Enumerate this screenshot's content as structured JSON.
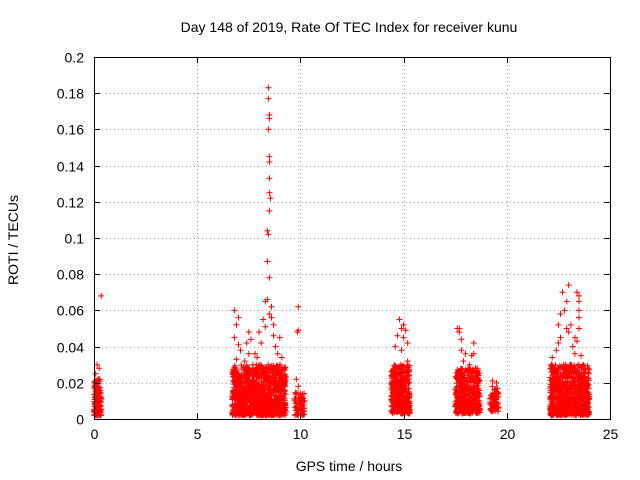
{
  "chart_data": {
    "type": "scatter",
    "title": "Day 148 of 2019, Rate Of TEC Index for receiver kunu",
    "xlabel": "GPS time / hours",
    "ylabel": "ROTI / TECUs",
    "xlim": [
      0,
      25
    ],
    "ylim": [
      0,
      0.2
    ],
    "xticks": [
      0,
      5,
      10,
      15,
      20,
      25
    ],
    "xtick_labels": [
      "0",
      "5",
      "10",
      "15",
      "20",
      "25"
    ],
    "yticks": [
      0,
      0.02,
      0.04,
      0.06,
      0.08,
      0.1,
      0.12,
      0.14,
      0.16,
      0.18,
      0.2
    ],
    "ytick_labels": [
      "0",
      "0.02",
      "0.04",
      "0.06",
      "0.08",
      "0.1",
      "0.12",
      "0.14",
      "0.16",
      "0.18",
      "0.2"
    ],
    "grid": true,
    "marker": "+",
    "color": "#ff0000",
    "series": [
      {
        "name": "ROTI",
        "points": [
          [
            0.05,
            0.005
          ],
          [
            0.05,
            0.012
          ],
          [
            0.05,
            0.018
          ],
          [
            0.08,
            0.025
          ],
          [
            0.1,
            0.009
          ],
          [
            0.1,
            0.02
          ],
          [
            0.12,
            0.015
          ],
          [
            0.15,
            0.006
          ],
          [
            0.15,
            0.03
          ],
          [
            0.18,
            0.011
          ],
          [
            0.2,
            0.022
          ],
          [
            0.22,
            0.004
          ],
          [
            0.25,
            0.017
          ],
          [
            0.25,
            0.028
          ],
          [
            0.28,
            0.01
          ],
          [
            0.3,
            0.014
          ],
          [
            0.35,
            0.068
          ],
          [
            6.8,
            0.06
          ],
          [
            6.8,
            0.045
          ],
          [
            6.9,
            0.052
          ],
          [
            6.9,
            0.033
          ],
          [
            7.0,
            0.056
          ],
          [
            7.0,
            0.041
          ],
          [
            7.1,
            0.038
          ],
          [
            7.3,
            0.032
          ],
          [
            7.4,
            0.042
          ],
          [
            7.5,
            0.048
          ],
          [
            7.5,
            0.036
          ],
          [
            7.6,
            0.044
          ],
          [
            7.7,
            0.03
          ],
          [
            7.8,
            0.036
          ],
          [
            7.9,
            0.034
          ],
          [
            8.0,
            0.048
          ],
          [
            8.1,
            0.042
          ],
          [
            8.2,
            0.055
          ],
          [
            8.3,
            0.051
          ],
          [
            8.3,
            0.065
          ],
          [
            8.45,
            0.183
          ],
          [
            8.45,
            0.177
          ],
          [
            8.5,
            0.168
          ],
          [
            8.5,
            0.166
          ],
          [
            8.45,
            0.16
          ],
          [
            8.5,
            0.145
          ],
          [
            8.5,
            0.142
          ],
          [
            8.5,
            0.133
          ],
          [
            8.5,
            0.125
          ],
          [
            8.55,
            0.122
          ],
          [
            8.5,
            0.115
          ],
          [
            8.4,
            0.104
          ],
          [
            8.45,
            0.102
          ],
          [
            8.4,
            0.087
          ],
          [
            8.5,
            0.078
          ],
          [
            8.4,
            0.066
          ],
          [
            8.5,
            0.058
          ],
          [
            8.6,
            0.062
          ],
          [
            8.6,
            0.056
          ],
          [
            8.7,
            0.052
          ],
          [
            8.7,
            0.046
          ],
          [
            8.8,
            0.04
          ],
          [
            8.9,
            0.036
          ],
          [
            9.0,
            0.045
          ],
          [
            9.0,
            0.03
          ],
          [
            9.1,
            0.034
          ],
          [
            9.2,
            0.028
          ],
          [
            9.9,
            0.062
          ],
          [
            9.85,
            0.048
          ],
          [
            9.9,
            0.049
          ],
          [
            9.8,
            0.022
          ],
          [
            9.9,
            0.018
          ],
          [
            10.0,
            0.014
          ],
          [
            10.0,
            0.008
          ],
          [
            10.1,
            0.012
          ],
          [
            10.1,
            0.004
          ],
          [
            10.2,
            0.01
          ],
          [
            14.6,
            0.04
          ],
          [
            14.7,
            0.046
          ],
          [
            14.8,
            0.055
          ],
          [
            14.9,
            0.05
          ],
          [
            14.9,
            0.038
          ],
          [
            15.0,
            0.052
          ],
          [
            15.0,
            0.045
          ],
          [
            15.1,
            0.049
          ],
          [
            15.2,
            0.042
          ],
          [
            15.2,
            0.032
          ],
          [
            14.5,
            0.025
          ],
          [
            14.5,
            0.015
          ],
          [
            14.6,
            0.008
          ],
          [
            17.6,
            0.05
          ],
          [
            17.7,
            0.05
          ],
          [
            17.7,
            0.048
          ],
          [
            17.8,
            0.038
          ],
          [
            17.8,
            0.044
          ],
          [
            17.9,
            0.032
          ],
          [
            18.0,
            0.036
          ],
          [
            18.2,
            0.03
          ],
          [
            18.3,
            0.035
          ],
          [
            18.4,
            0.042
          ],
          [
            18.4,
            0.036
          ],
          [
            18.5,
            0.028
          ],
          [
            18.6,
            0.022
          ],
          [
            19.3,
            0.021
          ],
          [
            19.3,
            0.018
          ],
          [
            19.4,
            0.016
          ],
          [
            19.4,
            0.012
          ],
          [
            19.5,
            0.02
          ],
          [
            19.5,
            0.009
          ],
          [
            19.6,
            0.014
          ],
          [
            19.6,
            0.006
          ],
          [
            22.2,
            0.034
          ],
          [
            22.3,
            0.028
          ],
          [
            22.4,
            0.038
          ],
          [
            22.5,
            0.042
          ],
          [
            22.5,
            0.052
          ],
          [
            22.6,
            0.058
          ],
          [
            22.6,
            0.045
          ],
          [
            22.7,
            0.07
          ],
          [
            22.8,
            0.06
          ],
          [
            22.9,
            0.065
          ],
          [
            22.9,
            0.05
          ],
          [
            23.0,
            0.074
          ],
          [
            23.0,
            0.048
          ],
          [
            23.1,
            0.052
          ],
          [
            23.2,
            0.04
          ],
          [
            23.3,
            0.045
          ],
          [
            23.3,
            0.036
          ],
          [
            23.4,
            0.07
          ],
          [
            23.5,
            0.068
          ],
          [
            23.5,
            0.065
          ],
          [
            23.5,
            0.06
          ],
          [
            23.5,
            0.056
          ],
          [
            23.5,
            0.05
          ],
          [
            23.4,
            0.043
          ],
          [
            23.6,
            0.035
          ],
          [
            23.7,
            0.03
          ],
          [
            23.8,
            0.025
          ],
          [
            23.9,
            0.018
          ]
        ],
        "dense_clusters": [
          {
            "x_range": [
              0.0,
              0.35
            ],
            "y_range": [
              0.002,
              0.022
            ],
            "count": 120
          },
          {
            "x_range": [
              6.7,
              9.3
            ],
            "y_range": [
              0.002,
              0.03
            ],
            "count": 1100
          },
          {
            "x_range": [
              9.7,
              10.2
            ],
            "y_range": [
              0.002,
              0.015
            ],
            "count": 60
          },
          {
            "x_range": [
              14.4,
              15.3
            ],
            "y_range": [
              0.003,
              0.03
            ],
            "count": 380
          },
          {
            "x_range": [
              17.5,
              18.7
            ],
            "y_range": [
              0.003,
              0.028
            ],
            "count": 420
          },
          {
            "x_range": [
              19.2,
              19.6
            ],
            "y_range": [
              0.004,
              0.018
            ],
            "count": 60
          },
          {
            "x_range": [
              22.1,
              24.0
            ],
            "y_range": [
              0.002,
              0.03
            ],
            "count": 800
          }
        ]
      }
    ]
  }
}
